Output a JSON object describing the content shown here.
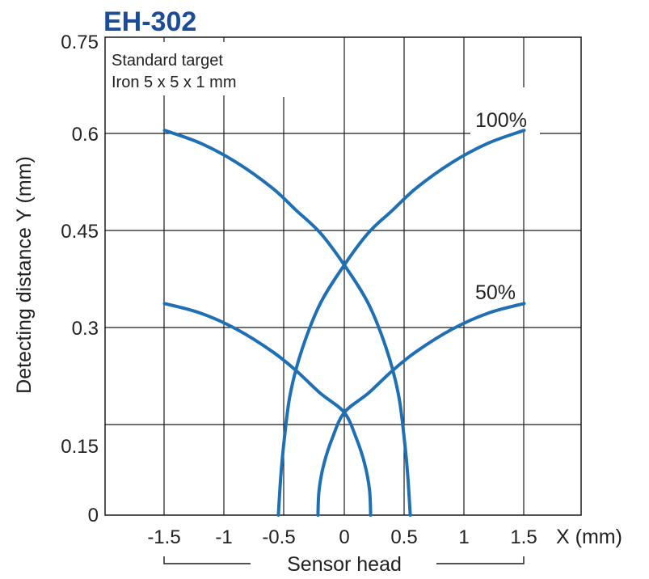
{
  "chart_data": {
    "type": "line",
    "title": "EH-302",
    "xlabel": "X (mm)",
    "ylabel": "Detecting distance Y (mm)",
    "sensor_label": "Sensor head",
    "annotation_lines": [
      "Standard target",
      "Iron 5 x 5 x 1 mm"
    ],
    "xlim": [
      -1.5,
      1.5
    ],
    "ylim": [
      0,
      0.75
    ],
    "x_ticks": [
      "-1.5",
      "-1",
      "-0.5",
      "0",
      "0.5",
      "1",
      "1.5"
    ],
    "y_ticks": [
      "0",
      "0.15",
      "0.3",
      "0.45",
      "0.6",
      "0.75"
    ],
    "grid": true,
    "line_color": "#1f6fb5",
    "title_color": "#1a4c97",
    "series": [
      {
        "name": "100%",
        "points": [
          [
            -1.5,
            0.6
          ],
          [
            -1.2,
            0.58
          ],
          [
            -0.9,
            0.55
          ],
          [
            -0.6,
            0.51
          ],
          [
            -0.4,
            0.475
          ],
          [
            -0.2,
            0.44
          ],
          [
            0,
            0.39
          ],
          [
            0.2,
            0.33
          ],
          [
            0.35,
            0.26
          ],
          [
            0.45,
            0.19
          ],
          [
            0.5,
            0.12
          ],
          [
            0.53,
            0.06
          ],
          [
            0.55,
            0
          ]
        ]
      },
      {
        "name": "",
        "points": [
          [
            1.5,
            0.6
          ],
          [
            1.2,
            0.58
          ],
          [
            0.9,
            0.55
          ],
          [
            0.6,
            0.51
          ],
          [
            0.4,
            0.475
          ],
          [
            0.2,
            0.44
          ],
          [
            0,
            0.39
          ],
          [
            -0.2,
            0.33
          ],
          [
            -0.35,
            0.26
          ],
          [
            -0.45,
            0.19
          ],
          [
            -0.5,
            0.12
          ],
          [
            -0.53,
            0.06
          ],
          [
            -0.55,
            0
          ]
        ]
      },
      {
        "name": "50%",
        "points": [
          [
            -1.5,
            0.33
          ],
          [
            -1.2,
            0.315
          ],
          [
            -0.9,
            0.29
          ],
          [
            -0.6,
            0.255
          ],
          [
            -0.4,
            0.225
          ],
          [
            -0.2,
            0.19
          ],
          [
            0,
            0.16
          ],
          [
            0.1,
            0.12
          ],
          [
            0.17,
            0.08
          ],
          [
            0.21,
            0.04
          ],
          [
            0.22,
            0
          ]
        ]
      },
      {
        "name": "",
        "points": [
          [
            1.5,
            0.33
          ],
          [
            1.2,
            0.315
          ],
          [
            0.9,
            0.29
          ],
          [
            0.6,
            0.255
          ],
          [
            0.4,
            0.225
          ],
          [
            0.2,
            0.19
          ],
          [
            0,
            0.16
          ],
          [
            -0.1,
            0.12
          ],
          [
            -0.17,
            0.08
          ],
          [
            -0.21,
            0.04
          ],
          [
            -0.22,
            0
          ]
        ]
      }
    ]
  }
}
